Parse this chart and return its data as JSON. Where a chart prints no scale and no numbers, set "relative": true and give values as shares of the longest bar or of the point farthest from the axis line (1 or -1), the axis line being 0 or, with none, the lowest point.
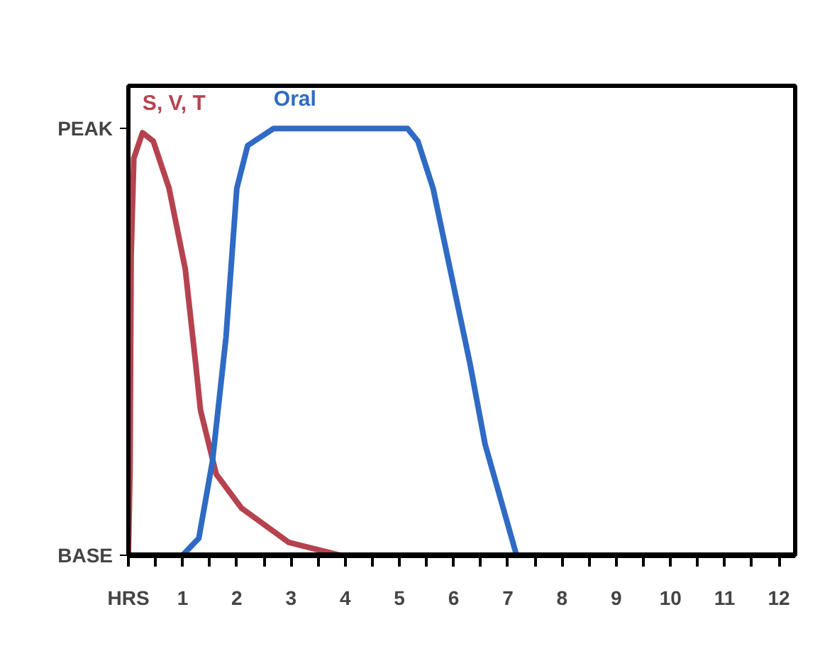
{
  "chart_data": {
    "type": "line",
    "relative": true,
    "xlabel": "HRS",
    "xlim": [
      0,
      12.3
    ],
    "xticks": [
      {
        "value": 0.5,
        "label": null
      },
      1,
      {
        "value": 1.5,
        "label": null
      },
      2,
      {
        "value": 2.5,
        "label": null
      },
      3,
      {
        "value": 3.5,
        "label": null
      },
      4,
      {
        "value": 4.5,
        "label": null
      },
      5,
      {
        "value": 5.5,
        "label": null
      },
      6,
      {
        "value": 6.5,
        "label": null
      },
      7,
      {
        "value": 7.5,
        "label": null
      },
      8,
      {
        "value": 8.5,
        "label": null
      },
      9,
      {
        "value": 9.5,
        "label": null
      },
      10,
      {
        "value": 10.5,
        "label": null
      },
      11,
      {
        "value": 11.5,
        "label": null
      },
      12
    ],
    "annotations": [
      "PEAK",
      "BASE"
    ],
    "series": [
      {
        "name": "S, V, T",
        "color": "#b5434f",
        "x": [
          0,
          0.03,
          0.05,
          0.1,
          0.26,
          0.46,
          0.75,
          1.05,
          1.24,
          1.33,
          1.62,
          2.09,
          2.96,
          3.9
        ],
        "values": [
          0,
          0.2,
          0.7,
          0.93,
          0.99,
          0.97,
          0.86,
          0.67,
          0.45,
          0.34,
          0.19,
          0.11,
          0.03,
          0
        ]
      },
      {
        "name": "Oral",
        "color": "#2f6bc4",
        "x": [
          1,
          1.3,
          1.55,
          1.8,
          2.0,
          2.2,
          2.68,
          5.15,
          5.34,
          5.62,
          6.3,
          6.58,
          7.16
        ],
        "values": [
          0,
          0.04,
          0.22,
          0.51,
          0.86,
          0.96,
          1.0,
          1.0,
          0.97,
          0.86,
          0.45,
          0.26,
          0
        ]
      }
    ],
    "grid": false,
    "marker": "none",
    "line_style": "solid"
  }
}
